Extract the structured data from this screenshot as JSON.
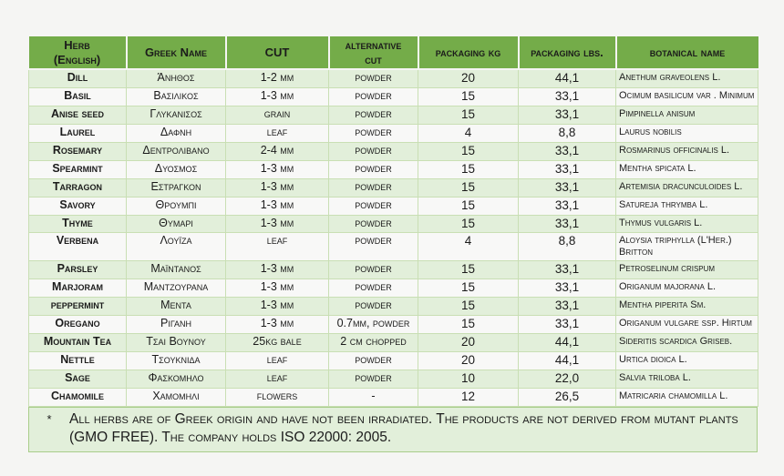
{
  "colors": {
    "page_bg": "#f5f5f3",
    "header_bg": "#74ac49",
    "row_green": "#e2efda",
    "row_white": "#f8f8f7",
    "cell_border": "#c9dfb4",
    "footnote_bg": "#e2efda",
    "footnote_border": "#a9cd8a",
    "text": "#1b1b1b"
  },
  "table": {
    "columns": [
      {
        "key": "herb",
        "label": "Herb\n(English)"
      },
      {
        "key": "greek",
        "label": "Greek Name"
      },
      {
        "key": "cut",
        "label": "CUT"
      },
      {
        "key": "alt-cut",
        "label": "alternative\ncut"
      },
      {
        "key": "pack-kg",
        "label": "packaging kg"
      },
      {
        "key": "pack-lbs",
        "label": "packaging lbs."
      },
      {
        "key": "botanical",
        "label": "botanical name"
      }
    ],
    "rows": [
      {
        "cells": [
          "Dill",
          "Άνηθος",
          "1-2 mm",
          "powder",
          "20",
          "44,1",
          "Anethum graveolens L."
        ]
      },
      {
        "cells": [
          "Basil",
          "Βασιλικος",
          "1-3 mm",
          "powder",
          "15",
          "33,1",
          "Ocimum basilicum var . Minimum"
        ]
      },
      {
        "cells": [
          "Anise seed",
          "Γλυκανισος",
          "grain",
          "powder",
          "15",
          "33,1",
          "Pimpinella anisum"
        ]
      },
      {
        "cells": [
          "Laurel",
          "Δαφνη",
          "leaf",
          "powder",
          "4",
          "8,8",
          "Laurus nobilis"
        ]
      },
      {
        "cells": [
          "Rosemary",
          "Δεντρολιβανο",
          "2-4 mm",
          "powder",
          "15",
          "33,1",
          "Rosmarinus officinalis L."
        ]
      },
      {
        "cells": [
          "Spearmint",
          "Δυοσμος",
          "1-3 mm",
          "powder",
          "15",
          "33,1",
          "Mentha spicata L."
        ]
      },
      {
        "cells": [
          "Tarragon",
          "Εστραγκον",
          "1-3 mm",
          "powder",
          "15",
          "33,1",
          "Artemisia dracunculoides L."
        ]
      },
      {
        "cells": [
          "Savory",
          "Θρουμπι",
          "1-3 mm",
          "powder",
          "15",
          "33,1",
          "Satureja thrymba L."
        ]
      },
      {
        "cells": [
          "Thyme",
          "Θυμαρι",
          "1-3 mm",
          "powder",
          "15",
          "33,1",
          "Thymus vulgaris L."
        ]
      },
      {
        "cells": [
          "Verbena",
          "Λουϊζα",
          "leaf",
          "powder",
          "4",
          "8,8",
          "Aloysia triphylla (L'Her.) Britton"
        ]
      },
      {
        "cells": [
          "Parsley",
          "Μαϊντανος",
          "1-3 mm",
          "powder",
          "15",
          "33,1",
          "Petroselinum crispum"
        ]
      },
      {
        "cells": [
          "Marjoram",
          "Μαντζουρανα",
          "1-3 mm",
          "powder",
          "15",
          "33,1",
          "Origanum majorana L."
        ]
      },
      {
        "cells": [
          "peppermint",
          "Μεντα",
          "1-3 mm",
          "powder",
          "15",
          "33,1",
          "Mentha piperita Sm."
        ]
      },
      {
        "cells": [
          "Oregano",
          "Ριγανη",
          "1-3 mm",
          "0.7mm, powder",
          "15",
          "33,1",
          "Origanum vulgare ssp. Hirtum"
        ]
      },
      {
        "cells": [
          "Mountain Tea",
          "Τσαι Βουνου",
          "25kg bale",
          "2 cm chopped",
          "20",
          "44,1",
          "Sideritis scardica Griseb."
        ]
      },
      {
        "cells": [
          "Nettle",
          "Τσουκνιδα",
          "leaf",
          "powder",
          "20",
          "44,1",
          "Urtica dioica L."
        ]
      },
      {
        "cells": [
          "Sage",
          "Φασκομηλο",
          "leaf",
          "powder",
          "10",
          "22,0",
          "Salvia triloba L."
        ]
      },
      {
        "cells": [
          "Chamomile",
          "Χαμομηλι",
          "flowers",
          "-",
          "12",
          "26,5",
          "Matricaria chamomilla L."
        ]
      }
    ]
  },
  "footnote": {
    "bullet": "*",
    "text": "All herbs are of Greek origin and have not been irradiated. The products are not derived from mutant plants (GMO FREE). The company holds ISO 22000: 2005."
  }
}
